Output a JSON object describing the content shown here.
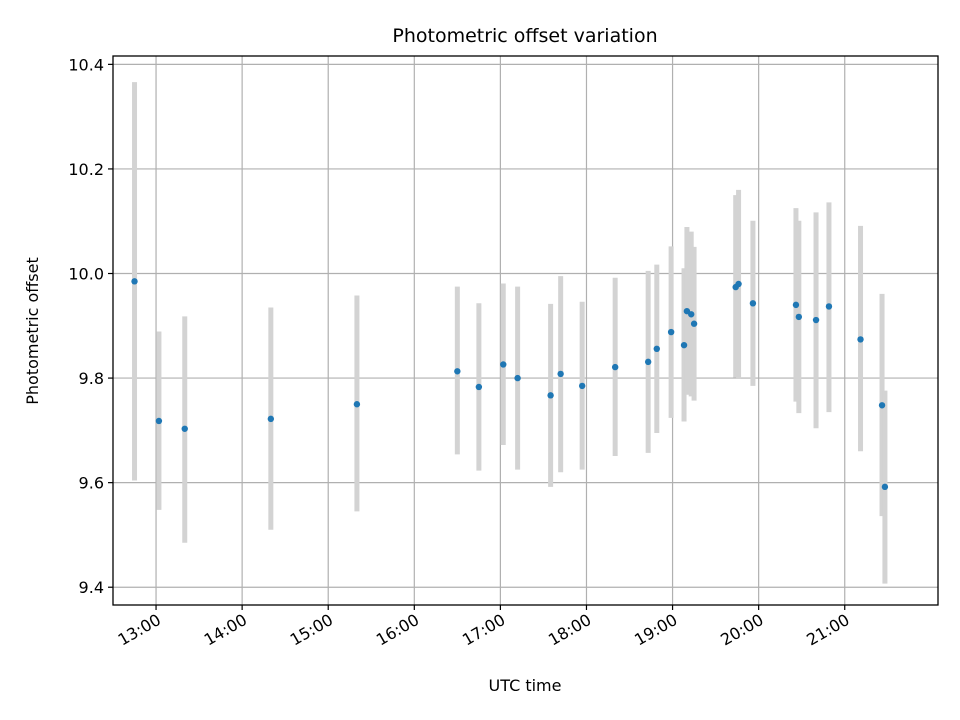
{
  "chart_data": {
    "type": "scatter",
    "title": "Photometric offset variation",
    "xlabel": "UTC time",
    "ylabel": "Photometric offset",
    "xlim": [
      "12:30",
      "22:05"
    ],
    "ylim": [
      9.366,
      10.416
    ],
    "grid": true,
    "xticks": [
      "13:00",
      "14:00",
      "15:00",
      "16:00",
      "17:00",
      "18:00",
      "19:00",
      "20:00",
      "21:00"
    ],
    "yticks": [
      9.4,
      9.6,
      9.8,
      10.0,
      10.2,
      10.4
    ],
    "colors": {
      "points": "#1f77b4",
      "errorbars": "#d3d3d3",
      "grid": "#b0b0b0"
    },
    "points": [
      {
        "x": "12:45",
        "y": 9.985,
        "err_low": 9.604,
        "err_high": 10.366
      },
      {
        "x": "13:02",
        "y": 9.718,
        "err_low": 9.548,
        "err_high": 9.889
      },
      {
        "x": "13:20",
        "y": 9.703,
        "err_low": 9.485,
        "err_high": 9.918
      },
      {
        "x": "14:20",
        "y": 9.722,
        "err_low": 9.51,
        "err_high": 9.935
      },
      {
        "x": "15:20",
        "y": 9.75,
        "err_low": 9.545,
        "err_high": 9.958
      },
      {
        "x": "16:30",
        "y": 9.813,
        "err_low": 9.654,
        "err_high": 9.975
      },
      {
        "x": "16:45",
        "y": 9.783,
        "err_low": 9.623,
        "err_high": 9.943
      },
      {
        "x": "17:02",
        "y": 9.826,
        "err_low": 9.672,
        "err_high": 9.981
      },
      {
        "x": "17:12",
        "y": 9.8,
        "err_low": 9.625,
        "err_high": 9.975
      },
      {
        "x": "17:35",
        "y": 9.767,
        "err_low": 9.592,
        "err_high": 9.942
      },
      {
        "x": "17:42",
        "y": 9.808,
        "err_low": 9.62,
        "err_high": 9.995
      },
      {
        "x": "17:57",
        "y": 9.785,
        "err_low": 9.625,
        "err_high": 9.946
      },
      {
        "x": "18:20",
        "y": 9.821,
        "err_low": 9.651,
        "err_high": 9.992
      },
      {
        "x": "18:43",
        "y": 9.831,
        "err_low": 9.657,
        "err_high": 10.005
      },
      {
        "x": "18:49",
        "y": 9.856,
        "err_low": 9.695,
        "err_high": 10.017
      },
      {
        "x": "18:59",
        "y": 9.888,
        "err_low": 9.724,
        "err_high": 10.052
      },
      {
        "x": "19:08",
        "y": 9.863,
        "err_low": 9.717,
        "err_high": 10.01
      },
      {
        "x": "19:10",
        "y": 9.928,
        "err_low": 9.768,
        "err_high": 10.089
      },
      {
        "x": "19:13",
        "y": 9.922,
        "err_low": 9.765,
        "err_high": 10.08
      },
      {
        "x": "19:15",
        "y": 9.904,
        "err_low": 9.757,
        "err_high": 10.051
      },
      {
        "x": "19:44",
        "y": 9.974,
        "err_low": 9.801,
        "err_high": 10.15
      },
      {
        "x": "19:46",
        "y": 9.98,
        "err_low": 9.8,
        "err_high": 10.16
      },
      {
        "x": "19:56",
        "y": 9.943,
        "err_low": 9.785,
        "err_high": 10.101
      },
      {
        "x": "20:26",
        "y": 9.94,
        "err_low": 9.755,
        "err_high": 10.125
      },
      {
        "x": "20:28",
        "y": 9.917,
        "err_low": 9.733,
        "err_high": 10.101
      },
      {
        "x": "20:40",
        "y": 9.911,
        "err_low": 9.704,
        "err_high": 10.117
      },
      {
        "x": "20:49",
        "y": 9.937,
        "err_low": 9.735,
        "err_high": 10.136
      },
      {
        "x": "21:11",
        "y": 9.874,
        "err_low": 9.66,
        "err_high": 10.091
      },
      {
        "x": "21:26",
        "y": 9.748,
        "err_low": 9.536,
        "err_high": 9.961
      },
      {
        "x": "21:28",
        "y": 9.592,
        "err_low": 9.407,
        "err_high": 9.776
      }
    ]
  }
}
